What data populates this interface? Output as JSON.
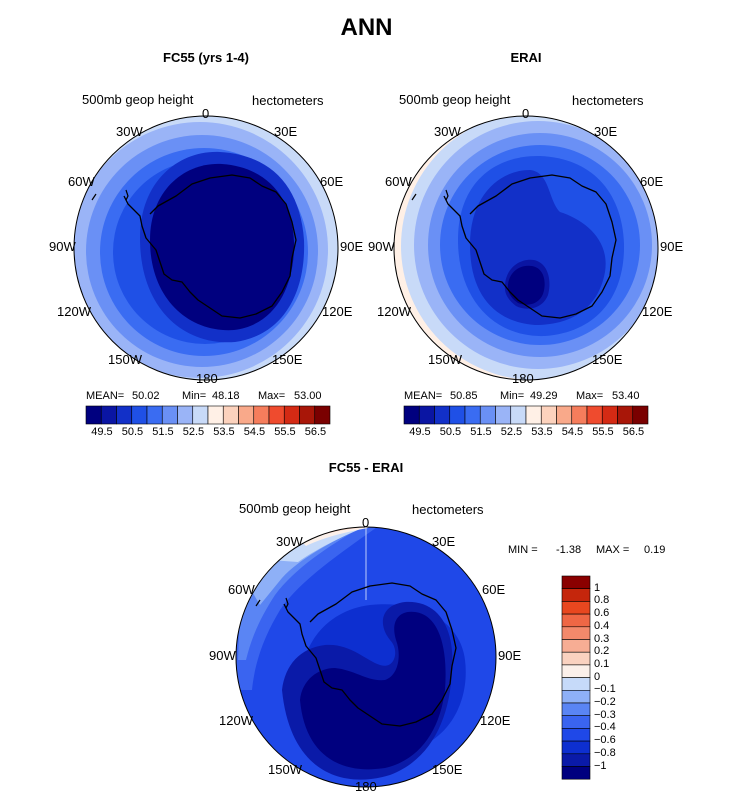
{
  "title": "ANN",
  "colors": {
    "abs_scale": [
      "#00007f",
      "#0a15a3",
      "#1230c8",
      "#1f50e6",
      "#3a6cf2",
      "#6a90f5",
      "#9ab4f7",
      "#c8daf8",
      "#fff0e6",
      "#fcd2bd",
      "#f9a98a",
      "#f57d5c",
      "#ef4b2e",
      "#d42a14",
      "#a81608",
      "#7a0000"
    ],
    "diff_scale": [
      "#00007f",
      "#0a1aa8",
      "#0d2fd0",
      "#1f48e8",
      "#3a64f0",
      "#5a85f4",
      "#8eb0f7",
      "#c6daf9",
      "#fbf0ea",
      "#fad2c0",
      "#f7ad94",
      "#f3896b",
      "#ef6745",
      "#e8471f",
      "#c5260c",
      "#8a0000"
    ]
  },
  "chart_data": [
    {
      "type": "heatmap",
      "title": "FC55 (yrs 1-4)",
      "variable": "500mb geop height",
      "units": "hectometers",
      "projection": "south-polar-stereographic",
      "lon_labels": [
        "0",
        "30E",
        "60E",
        "90E",
        "120E",
        "150E",
        "180",
        "150W",
        "120W",
        "90W",
        "60W",
        "30W"
      ],
      "stats": {
        "mean": "50.02",
        "min": "48.18",
        "max": "53.00"
      },
      "colorbar_ticks": [
        "49.5",
        "50.5",
        "51.5",
        "52.5",
        "53.5",
        "54.5",
        "55.5",
        "56.5"
      ],
      "labels": {
        "mean": "MEAN=",
        "min": "Min=",
        "max": "Max="
      }
    },
    {
      "type": "heatmap",
      "title": "ERAI",
      "variable": "500mb geop height",
      "units": "hectometers",
      "projection": "south-polar-stereographic",
      "lon_labels": [
        "0",
        "30E",
        "60E",
        "90E",
        "120E",
        "150E",
        "180",
        "150W",
        "120W",
        "90W",
        "60W",
        "30W"
      ],
      "stats": {
        "mean": "50.85",
        "min": "49.29",
        "max": "53.40"
      },
      "colorbar_ticks": [
        "49.5",
        "50.5",
        "51.5",
        "52.5",
        "53.5",
        "54.5",
        "55.5",
        "56.5"
      ],
      "labels": {
        "mean": "MEAN=",
        "min": "Min=",
        "max": "Max="
      }
    },
    {
      "type": "heatmap",
      "title": "FC55 - ERAI",
      "variable": "500mb geop height",
      "units": "hectometers",
      "projection": "south-polar-stereographic",
      "lon_labels": [
        "0",
        "30E",
        "60E",
        "90E",
        "120E",
        "150E",
        "180",
        "150W",
        "120W",
        "90W",
        "60W",
        "30W"
      ],
      "stats": {
        "min": "-1.38",
        "max": "0.19"
      },
      "labels": {
        "min": "MIN =",
        "max": "MAX ="
      },
      "colorbar_ticks": [
        "1",
        "0.8",
        "0.6",
        "0.4",
        "0.3",
        "0.2",
        "0.1",
        "0",
        "−0.1",
        "−0.2",
        "−0.3",
        "−0.4",
        "−0.6",
        "−0.8",
        "−1"
      ]
    }
  ]
}
